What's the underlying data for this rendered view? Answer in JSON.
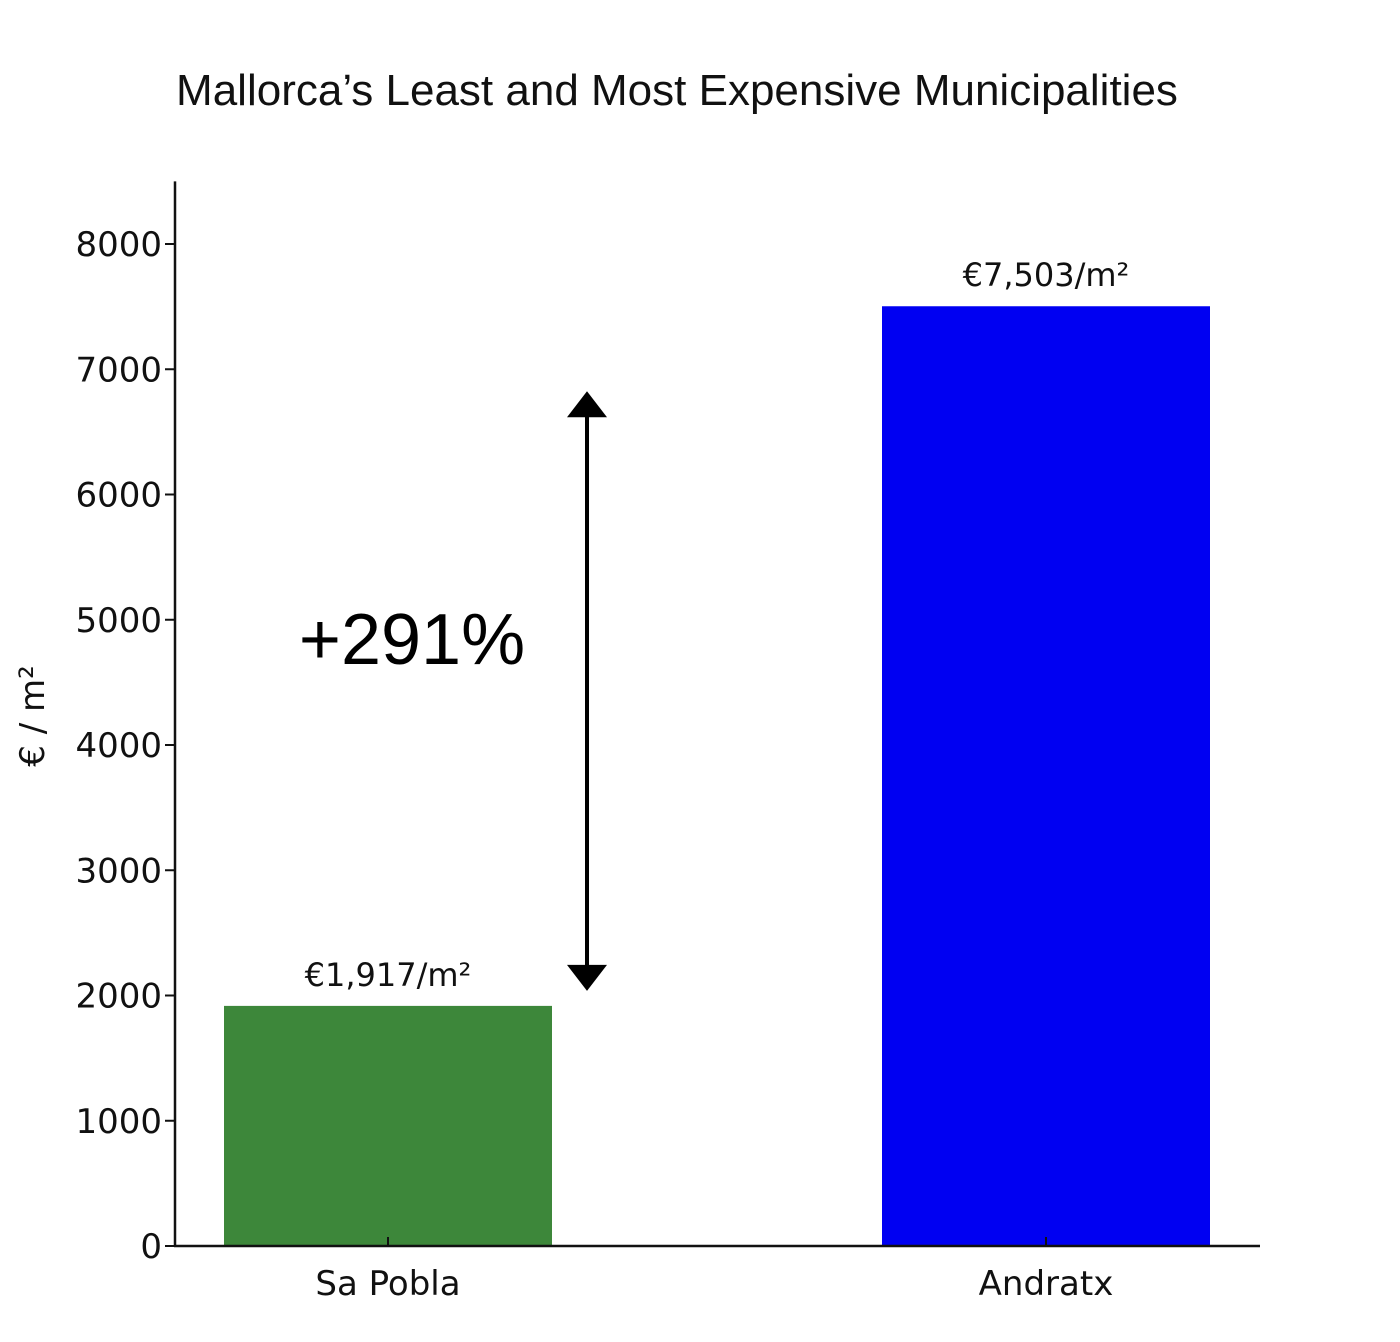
{
  "chart_data": {
    "type": "bar",
    "title": "Mallorca’s Least and Most Expensive Municipalities",
    "xlabel": "",
    "ylabel": "€ / m²",
    "ylim": [
      0,
      8500
    ],
    "yticks": [
      0,
      1000,
      2000,
      3000,
      4000,
      5000,
      6000,
      7000,
      8000
    ],
    "categories": [
      "Sa Pobla",
      "Andratx"
    ],
    "values": [
      1917,
      7503
    ],
    "bar_colors": [
      "#3d873a",
      "#0000f2"
    ],
    "data_labels": [
      "€1,917/m²",
      "€7,503/m²"
    ],
    "grid": false,
    "annotation": {
      "text": "+291%",
      "arrow_from": 1917,
      "arrow_to": 7503
    }
  }
}
